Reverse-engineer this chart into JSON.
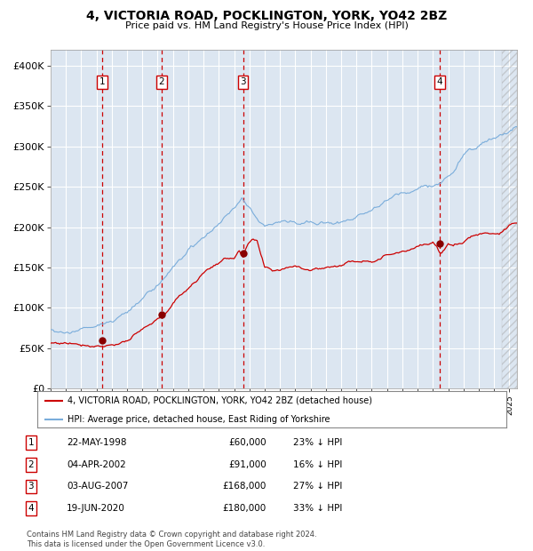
{
  "title": "4, VICTORIA ROAD, POCKLINGTON, YORK, YO42 2BZ",
  "subtitle": "Price paid vs. HM Land Registry's House Price Index (HPI)",
  "xlim": [
    1995.0,
    2025.5
  ],
  "ylim": [
    0,
    420000
  ],
  "yticks": [
    0,
    50000,
    100000,
    150000,
    200000,
    250000,
    300000,
    350000,
    400000
  ],
  "background_color": "#dce6f1",
  "grid_color": "#ffffff",
  "hpi_color": "#7aaddb",
  "price_color": "#cc0000",
  "sale_marker_color": "#880000",
  "dashed_line_color": "#cc0000",
  "legend_label_property": "4, VICTORIA ROAD, POCKLINGTON, YORK, YO42 2BZ (detached house)",
  "legend_label_hpi": "HPI: Average price, detached house, East Riding of Yorkshire",
  "footer_text": "Contains HM Land Registry data © Crown copyright and database right 2024.\nThis data is licensed under the Open Government Licence v3.0.",
  "sales": [
    {
      "num": 1,
      "date_str": "22-MAY-1998",
      "year": 1998.38,
      "price": 60000
    },
    {
      "num": 2,
      "date_str": "04-APR-2002",
      "year": 2002.25,
      "price": 91000
    },
    {
      "num": 3,
      "date_str": "03-AUG-2007",
      "year": 2007.58,
      "price": 168000
    },
    {
      "num": 4,
      "date_str": "19-JUN-2020",
      "year": 2020.46,
      "price": 180000
    }
  ],
  "table_rows": [
    {
      "num": 1,
      "date": "22-MAY-1998",
      "price": "£60,000",
      "info": "23% ↓ HPI"
    },
    {
      "num": 2,
      "date": "04-APR-2002",
      "price": "£91,000",
      "info": "16% ↓ HPI"
    },
    {
      "num": 3,
      "date": "03-AUG-2007",
      "price": "£168,000",
      "info": "27% ↓ HPI"
    },
    {
      "num": 4,
      "date": "19-JUN-2020",
      "price": "£180,000",
      "info": "33% ↓ HPI"
    }
  ],
  "hpi_anchors_x": [
    1995,
    1996,
    1997,
    1998,
    1999,
    2000,
    2001,
    2002,
    2003,
    2004,
    2005,
    2006,
    2007,
    2007.5,
    2008,
    2008.5,
    2009,
    2009.5,
    2010,
    2011,
    2012,
    2013,
    2014,
    2015,
    2016,
    2017,
    2018,
    2019,
    2020,
    2020.5,
    2021,
    2021.5,
    2022,
    2022.5,
    2023,
    2024,
    2025,
    2025.4
  ],
  "hpi_anchors_y": [
    73000,
    74000,
    76000,
    80000,
    87000,
    97000,
    112000,
    128000,
    152000,
    170000,
    185000,
    200000,
    220000,
    232000,
    222000,
    210000,
    196000,
    198000,
    202000,
    205000,
    205000,
    208000,
    212000,
    218000,
    228000,
    235000,
    242000,
    248000,
    252000,
    257000,
    265000,
    278000,
    295000,
    302000,
    308000,
    318000,
    325000,
    330000
  ],
  "prop_anchors_x": [
    1995,
    1996,
    1997,
    1998,
    1998.38,
    1999,
    2000,
    2001,
    2002,
    2002.25,
    2003,
    2004,
    2005,
    2006,
    2007,
    2007.3,
    2007.58,
    2007.9,
    2008.2,
    2008.5,
    2009,
    2009.5,
    2010,
    2011,
    2012,
    2013,
    2014,
    2015,
    2016,
    2017,
    2018,
    2019,
    2020,
    2020.46,
    2020.8,
    2021,
    2022,
    2022.5,
    2023,
    2023.5,
    2024,
    2024.5,
    2025,
    2025.4
  ],
  "prop_anchors_y": [
    56000,
    57000,
    57500,
    59000,
    60000,
    62000,
    68000,
    78000,
    88000,
    91000,
    108000,
    128000,
    148000,
    162000,
    168000,
    178000,
    168000,
    182000,
    188000,
    183000,
    148000,
    143000,
    145000,
    152000,
    150000,
    153000,
    158000,
    163000,
    168000,
    175000,
    183000,
    192000,
    194000,
    180000,
    185000,
    191000,
    196000,
    204000,
    207000,
    210000,
    210000,
    213000,
    218000,
    222000
  ]
}
